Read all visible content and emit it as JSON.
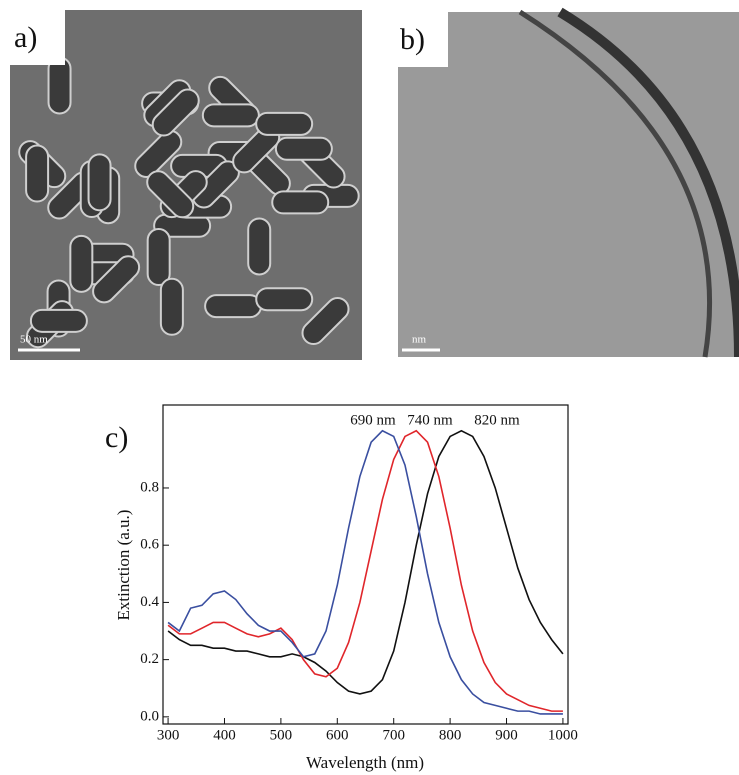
{
  "figure": {
    "panel_a": {
      "label": "a)",
      "scale_bar": "50 nm"
    },
    "panel_b": {
      "label": "b)",
      "scale_bar": "nm"
    }
  },
  "chart_data": {
    "type": "line",
    "panel_label": "c)",
    "x_label": "Wavelength (nm)",
    "y_label": "Extinction (a.u.)",
    "annotations": [
      "690 nm",
      "740 nm",
      "820 nm"
    ],
    "x": [
      300,
      320,
      340,
      360,
      380,
      400,
      420,
      440,
      460,
      480,
      500,
      520,
      540,
      560,
      580,
      600,
      620,
      640,
      660,
      680,
      700,
      720,
      740,
      760,
      780,
      800,
      820,
      840,
      860,
      880,
      900,
      920,
      940,
      960,
      980,
      1000
    ],
    "series": [
      {
        "name": "820 nm",
        "color": "#111111",
        "values": [
          0.3,
          0.27,
          0.25,
          0.25,
          0.24,
          0.24,
          0.23,
          0.23,
          0.22,
          0.21,
          0.21,
          0.22,
          0.21,
          0.19,
          0.16,
          0.12,
          0.09,
          0.08,
          0.09,
          0.13,
          0.23,
          0.4,
          0.6,
          0.78,
          0.91,
          0.98,
          1.0,
          0.98,
          0.91,
          0.8,
          0.66,
          0.52,
          0.41,
          0.33,
          0.27,
          0.22
        ]
      },
      {
        "name": "740 nm",
        "color": "#e0262b",
        "values": [
          0.32,
          0.29,
          0.29,
          0.31,
          0.33,
          0.33,
          0.31,
          0.29,
          0.28,
          0.29,
          0.31,
          0.27,
          0.2,
          0.15,
          0.14,
          0.17,
          0.26,
          0.4,
          0.58,
          0.76,
          0.9,
          0.98,
          1.0,
          0.96,
          0.84,
          0.66,
          0.46,
          0.3,
          0.19,
          0.12,
          0.08,
          0.06,
          0.04,
          0.03,
          0.02,
          0.02
        ]
      },
      {
        "name": "690 nm",
        "color": "#3a4fa0",
        "values": [
          0.33,
          0.3,
          0.38,
          0.39,
          0.43,
          0.44,
          0.41,
          0.36,
          0.32,
          0.3,
          0.3,
          0.26,
          0.21,
          0.22,
          0.3,
          0.46,
          0.66,
          0.84,
          0.96,
          1.0,
          0.98,
          0.88,
          0.7,
          0.5,
          0.33,
          0.21,
          0.13,
          0.08,
          0.05,
          0.04,
          0.03,
          0.02,
          0.02,
          0.01,
          0.01,
          0.01
        ]
      }
    ],
    "xlim": [
      291,
      1009
    ],
    "ylim": [
      -0.025,
      1.09
    ],
    "xticks": [
      300,
      400,
      500,
      600,
      700,
      800,
      900,
      1000
    ],
    "yticks": [
      {
        "value": 0,
        "label": "0.0"
      },
      0.2,
      0.4,
      0.6,
      0.8
    ]
  }
}
